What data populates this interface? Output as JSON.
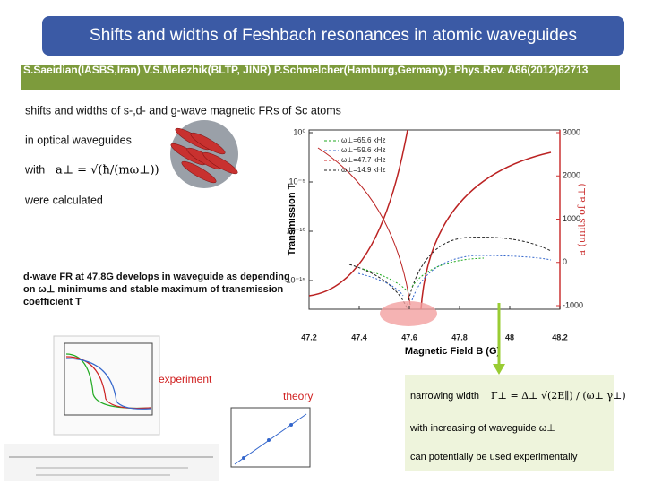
{
  "header": {
    "title": "Shifts and widths of Feshbach resonances in atomic waveguides",
    "citation": "S.Saeidian(IASBS,Iran)  V.S.Melezhik(BLTP, JINR)  P.Schmelcher(Hamburg,Germany): Phys.Rev. A86(2012)62713"
  },
  "body": {
    "line1": "shifts and widths of s-,d- and g-wave magnetic FRs of Sc atoms",
    "line2": "in  optical waveguides",
    "line3": "with",
    "formula": "a⊥ = √(ħ/(mω⊥))",
    "line4": "were calculated",
    "dwave": "d-wave FR at 47.8G develops in waveguide as depending on  ω⊥ minimums and stable maximum of transmission coefficient T",
    "experiment": "experiment",
    "theory": "theory"
  },
  "figure": {
    "y_label": "Transmission T",
    "x_label": "Magnetic Field B (G)",
    "y2_label": "a (units of a⊥)",
    "xticks": [
      "47.2",
      "47.4",
      "47.6",
      "47.8",
      "48",
      "48.2"
    ],
    "yticks": [
      "10⁰",
      "10⁻⁵",
      "10⁻¹⁰",
      "10⁻¹⁵"
    ],
    "y2ticks": [
      "3000",
      "2000",
      "1000",
      "0",
      "-1000"
    ],
    "legend": [
      "ω⊥=65.6 kHz",
      "ω⊥=59.6 kHz",
      "ω⊥=47.7 kHz",
      "ω⊥=14.9 kHz"
    ]
  },
  "note": {
    "line1": "narrowing width",
    "formula": "Γ⊥ = Δ⊥ √(2E∥) / (ω⊥ γ⊥)",
    "line2": "with increasing of waveguide ω⊥",
    "line3": "can potentially be used experimentally"
  }
}
